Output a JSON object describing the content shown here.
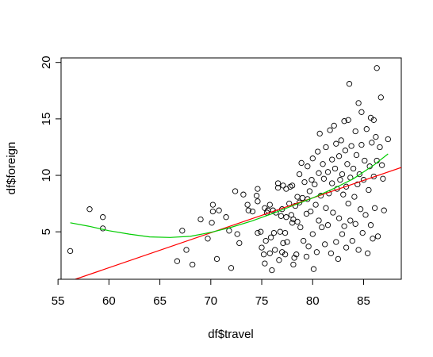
{
  "chart_data": {
    "type": "scatter",
    "title": "",
    "xlabel": "df$travel",
    "ylabel": "df$foreign",
    "xlim": [
      55.3,
      88.7
    ],
    "ylim": [
      0.8,
      20.4
    ],
    "xticks": [
      55,
      60,
      65,
      70,
      75,
      80,
      85
    ],
    "yticks": [
      5,
      10,
      15,
      20
    ],
    "xtick_labels": [
      "55",
      "60",
      "65",
      "70",
      "75",
      "80",
      "85"
    ],
    "ytick_labels": [
      "5",
      "10",
      "15",
      "20"
    ],
    "grid": false,
    "legend": "none",
    "colors": {
      "points": "#000000",
      "linear_fit": "#ff0000",
      "smooth_fit": "#00cc00",
      "axes": "#000000"
    },
    "series": [
      {
        "type": "scatter",
        "points": [
          [
            56.2,
            3.3
          ],
          [
            58.1,
            7.0
          ],
          [
            59.4,
            5.3
          ],
          [
            59.4,
            6.3
          ],
          [
            66.7,
            2.4
          ],
          [
            67.2,
            5.1
          ],
          [
            67.6,
            3.4
          ],
          [
            68.2,
            2.1
          ],
          [
            69.0,
            6.1
          ],
          [
            69.7,
            4.4
          ],
          [
            70.1,
            5.8
          ],
          [
            70.2,
            6.8
          ],
          [
            70.2,
            7.4
          ],
          [
            70.6,
            2.6
          ],
          [
            70.8,
            6.9
          ],
          [
            71.5,
            6.3
          ],
          [
            71.8,
            5.1
          ],
          [
            72.0,
            1.8
          ],
          [
            72.4,
            8.6
          ],
          [
            72.6,
            4.8
          ],
          [
            72.8,
            4.0
          ],
          [
            73.2,
            8.3
          ],
          [
            73.6,
            7.4
          ],
          [
            73.7,
            6.9
          ],
          [
            74.1,
            6.8
          ],
          [
            74.5,
            8.2
          ],
          [
            74.6,
            8.8
          ],
          [
            74.6,
            7.7
          ],
          [
            74.6,
            4.9
          ],
          [
            74.9,
            5.0
          ],
          [
            75.0,
            3.6
          ],
          [
            75.2,
            3.0
          ],
          [
            75.3,
            7.1
          ],
          [
            75.3,
            2.2
          ],
          [
            75.4,
            4.2
          ],
          [
            75.5,
            6.7
          ],
          [
            75.6,
            6.9
          ],
          [
            75.8,
            3.1
          ],
          [
            75.8,
            7.4
          ],
          [
            75.9,
            4.5
          ],
          [
            76.0,
            1.6
          ],
          [
            76.1,
            6.9
          ],
          [
            76.2,
            4.9
          ],
          [
            76.3,
            3.4
          ],
          [
            76.4,
            6.7
          ],
          [
            76.6,
            9.3
          ],
          [
            76.6,
            8.9
          ],
          [
            76.7,
            2.5
          ],
          [
            76.8,
            5.0
          ],
          [
            76.9,
            6.4
          ],
          [
            77.0,
            3.2
          ],
          [
            77.0,
            7.0
          ],
          [
            77.1,
            9.1
          ],
          [
            77.1,
            4.0
          ],
          [
            77.3,
            4.9
          ],
          [
            77.3,
            3.0
          ],
          [
            77.4,
            8.8
          ],
          [
            77.4,
            6.3
          ],
          [
            77.5,
            4.1
          ],
          [
            77.7,
            7.5
          ],
          [
            77.8,
            9.0
          ],
          [
            77.9,
            6.5
          ],
          [
            78.0,
            5.8
          ],
          [
            78.0,
            9.1
          ],
          [
            78.1,
            2.1
          ],
          [
            78.1,
            6.1
          ],
          [
            78.2,
            2.7
          ],
          [
            78.3,
            7.3
          ],
          [
            78.4,
            3.0
          ],
          [
            78.5,
            8.1
          ],
          [
            78.5,
            5.9
          ],
          [
            78.7,
            10.1
          ],
          [
            78.7,
            7.6
          ],
          [
            78.8,
            5.4
          ],
          [
            78.9,
            11.1
          ],
          [
            79.0,
            8.0
          ],
          [
            79.1,
            4.2
          ],
          [
            79.2,
            9.4
          ],
          [
            79.4,
            6.6
          ],
          [
            79.4,
            2.8
          ],
          [
            79.5,
            10.8
          ],
          [
            79.5,
            7.9
          ],
          [
            79.6,
            3.7
          ],
          [
            79.7,
            8.6
          ],
          [
            79.8,
            6.8
          ],
          [
            79.9,
            9.6
          ],
          [
            80.0,
            4.8
          ],
          [
            80.0,
            11.5
          ],
          [
            80.1,
            1.7
          ],
          [
            80.2,
            9.2
          ],
          [
            80.3,
            7.4
          ],
          [
            80.4,
            3.2
          ],
          [
            80.5,
            12.1
          ],
          [
            80.6,
            10.2
          ],
          [
            80.6,
            6.0
          ],
          [
            80.7,
            13.7
          ],
          [
            80.8,
            8.2
          ],
          [
            80.9,
            5.4
          ],
          [
            81.0,
            11.0
          ],
          [
            81.1,
            9.7
          ],
          [
            81.2,
            3.9
          ],
          [
            81.3,
            12.5
          ],
          [
            81.3,
            7.1
          ],
          [
            81.5,
            10.3
          ],
          [
            81.5,
            5.6
          ],
          [
            81.6,
            8.4
          ],
          [
            81.7,
            14.0
          ],
          [
            81.8,
            3.1
          ],
          [
            81.9,
            11.4
          ],
          [
            81.9,
            9.3
          ],
          [
            82.0,
            6.7
          ],
          [
            82.1,
            14.4
          ],
          [
            82.2,
            10.6
          ],
          [
            82.3,
            4.1
          ],
          [
            82.3,
            12.8
          ],
          [
            82.4,
            8.8
          ],
          [
            82.5,
            2.6
          ],
          [
            82.6,
            11.7
          ],
          [
            82.6,
            6.2
          ],
          [
            82.7,
            9.6
          ],
          [
            82.8,
            13.1
          ],
          [
            82.9,
            4.8
          ],
          [
            82.9,
            10.1
          ],
          [
            83.0,
            8.3
          ],
          [
            83.1,
            14.8
          ],
          [
            83.1,
            5.5
          ],
          [
            83.2,
            12.2
          ],
          [
            83.3,
            9.0
          ],
          [
            83.3,
            3.6
          ],
          [
            83.4,
            11.0
          ],
          [
            83.5,
            7.5
          ],
          [
            83.5,
            14.9
          ],
          [
            83.6,
            18.1
          ],
          [
            83.7,
            9.8
          ],
          [
            83.7,
            6.0
          ],
          [
            83.8,
            12.6
          ],
          [
            83.9,
            4.2
          ],
          [
            84.0,
            10.6
          ],
          [
            84.1,
            8.1
          ],
          [
            84.2,
            13.9
          ],
          [
            84.2,
            5.7
          ],
          [
            84.3,
            11.8
          ],
          [
            84.4,
            9.2
          ],
          [
            84.5,
            16.4
          ],
          [
            84.5,
            3.4
          ],
          [
            84.6,
            10.1
          ],
          [
            84.7,
            7.0
          ],
          [
            84.8,
            15.6
          ],
          [
            84.8,
            12.7
          ],
          [
            84.9,
            4.9
          ],
          [
            85.0,
            9.6
          ],
          [
            85.1,
            11.3
          ],
          [
            85.2,
            6.5
          ],
          [
            85.3,
            14.1
          ],
          [
            85.4,
            3.1
          ],
          [
            85.5,
            8.7
          ],
          [
            85.6,
            10.8
          ],
          [
            85.7,
            15.1
          ],
          [
            85.7,
            5.6
          ],
          [
            85.8,
            12.9
          ],
          [
            85.9,
            4.4
          ],
          [
            86.0,
            9.9
          ],
          [
            86.0,
            14.9
          ],
          [
            86.1,
            7.1
          ],
          [
            86.2,
            13.4
          ],
          [
            86.3,
            19.5
          ],
          [
            86.3,
            11.3
          ],
          [
            86.4,
            4.6
          ],
          [
            86.6,
            12.5
          ],
          [
            86.7,
            16.9
          ],
          [
            86.8,
            10.9
          ],
          [
            86.9,
            9.7
          ],
          [
            87.0,
            6.9
          ],
          [
            87.4,
            13.2
          ]
        ]
      },
      {
        "type": "line",
        "points": [
          [
            56.7,
            0.8
          ],
          [
            88.7,
            10.7
          ]
        ]
      },
      {
        "type": "line",
        "points": [
          [
            56.2,
            5.8
          ],
          [
            58.0,
            5.5
          ],
          [
            60.0,
            5.1
          ],
          [
            62.0,
            4.8
          ],
          [
            64.0,
            4.55
          ],
          [
            66.0,
            4.5
          ],
          [
            68.0,
            4.6
          ],
          [
            70.0,
            4.95
          ],
          [
            72.0,
            5.4
          ],
          [
            74.0,
            5.95
          ],
          [
            76.0,
            6.6
          ],
          [
            78.0,
            7.3
          ],
          [
            80.0,
            8.0
          ],
          [
            82.0,
            8.8
          ],
          [
            84.0,
            9.7
          ],
          [
            86.0,
            10.9
          ],
          [
            87.4,
            11.9
          ]
        ]
      }
    ]
  }
}
